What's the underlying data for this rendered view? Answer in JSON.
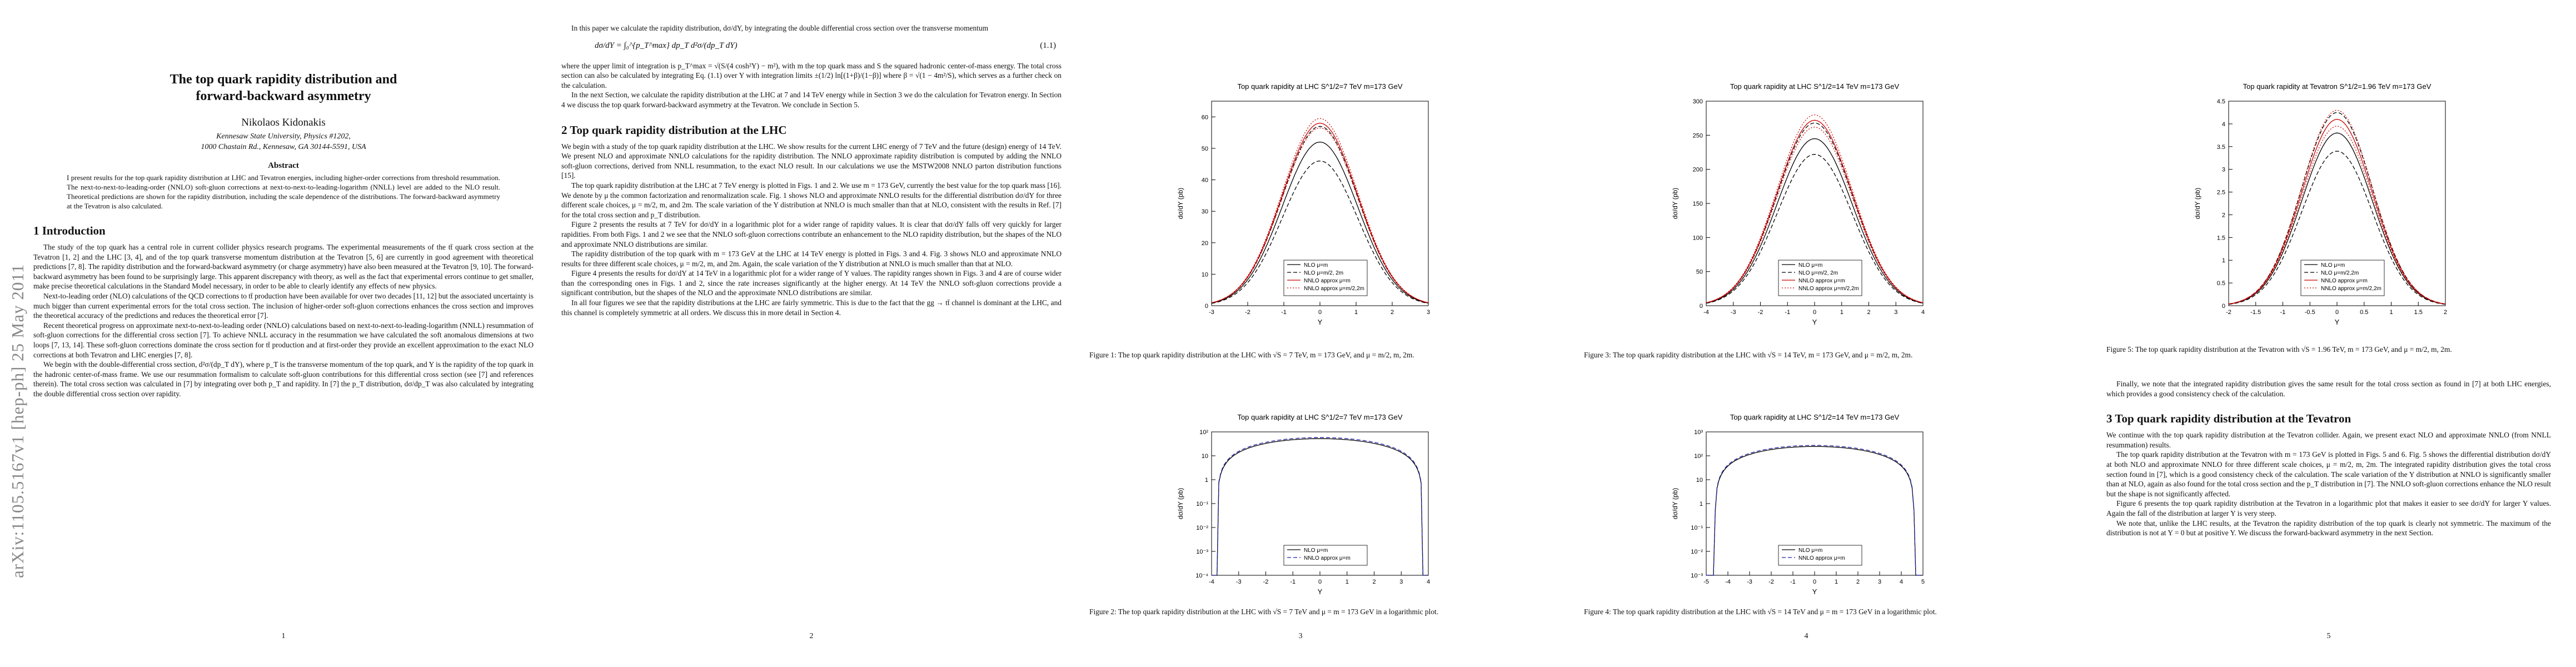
{
  "arxiv_id": "arXiv:1105.5167v1  [hep-ph]  25 May 2011",
  "page1": {
    "title_line1": "The top quark rapidity distribution and",
    "title_line2": "forward-backward asymmetry",
    "author": "Nikolaos Kidonakis",
    "affil_line1": "Kennesaw State University, Physics #1202,",
    "affil_line2": "1000 Chastain Rd., Kennesaw, GA 30144-5591, USA",
    "abstract_heading": "Abstract",
    "abstract": "I present results for the top quark rapidity distribution at LHC and Tevatron energies, including higher-order corrections from threshold resummation. The next-to-next-to-leading-order (NNLO) soft-gluon corrections at next-to-next-to-leading-logarithm (NNLL) level are added to the NLO result. Theoretical predictions are shown for the rapidity distribution, including the scale dependence of the distributions. The forward-backward asymmetry at the Tevatron is also calculated.",
    "section1": "1   Introduction",
    "para1": "The study of the top quark has a central role in current collider physics research programs. The experimental measurements of the tt̄ quark cross section at the Tevatron [1, 2] and the LHC [3, 4], and of the top quark transverse momentum distribution at the Tevatron [5, 6] are currently in good agreement with theoretical predictions [7, 8]. The rapidity distribution and the forward-backward asymmetry (or charge asymmetry) have also been measured at the Tevatron [9, 10]. The forward-backward asymmetry has been found to be surprisingly large. This apparent discrepancy with theory, as well as the fact that experimental errors continue to get smaller, make precise theoretical calculations in the Standard Model necessary, in order to be able to clearly identify any effects of new physics.",
    "para2": "Next-to-leading order (NLO) calculations of the QCD corrections to tt̄ production have been available for over two decades [11, 12] but the associated uncertainty is much bigger than current experimental errors for the total cross section. The inclusion of higher-order soft-gluon corrections enhances the cross section and improves the theoretical accuracy of the predictions and reduces the theoretical error [7].",
    "para3": "Recent theoretical progress on approximate next-to-next-to-leading order (NNLO) calculations based on next-to-next-to-leading-logarithm (NNLL) resummation of soft-gluon corrections for the differential cross section [7]. To achieve NNLL accuracy in the resummation we have calculated the soft anomalous dimensions at two loops [7, 13, 14]. These soft-gluon corrections dominate the cross section for tt̄ production and at first-order they provide an excellent approximation to the exact NLO corrections at both Tevatron and LHC energies [7, 8].",
    "para4": "We begin with the double-differential cross section, d²σ/(dp_T dY), where p_T is the transverse momentum of the top quark, and Y is the rapidity of the top quark in the hadronic center-of-mass frame. We use our resummation formalism to calculate soft-gluon contributions for this differential cross section (see [7] and references therein). The total cross section was calculated in [7] by integrating over both p_T and rapidity. In [7] the p_T distribution, dσ/dp_T was also calculated by integrating the double differential cross section over rapidity.",
    "page_number": "1"
  },
  "page2": {
    "intro": "In this paper we calculate the rapidity distribution, dσ/dY, by integrating the double differential cross section over the transverse momentum",
    "equation_lhs": "dσ/dY =",
    "equation_rhs": "∫₀^{p_T^max} dp_T  d²σ/(dp_T dY)",
    "equation_number": "(1.1)",
    "para_after_eq": "where the upper limit of integration is p_T^max = √(S/(4 cosh²Y) − m²), with m the top quark mass and S the squared hadronic center-of-mass energy. The total cross section can also be calculated by integrating Eq. (1.1) over Y with integration limits ±(1/2) ln[(1+β)/(1−β)] where β = √(1 − 4m²/S), which serves as a further check on the calculation.",
    "para_next": "In the next Section, we calculate the rapidity distribution at the LHC at 7 and 14 TeV energy while in Section 3 we do the calculation for Tevatron energy. In Section 4 we discuss the top quark forward-backward asymmetry at the Tevatron. We conclude in Section 5.",
    "section2": "2   Top quark rapidity distribution at the LHC",
    "s2p1": "We begin with a study of the top quark rapidity distribution at the LHC. We show results for the current LHC energy of 7 TeV and the future (design) energy of 14 TeV. We present NLO and approximate NNLO calculations for the rapidity distribution. The NNLO approximate rapidity distribution is computed by adding the NNLO soft-gluon corrections, derived from NNLL resummation, to the exact NLO result. In our calculations we use the MSTW2008 NNLO parton distribution functions [15].",
    "s2p2": "The top quark rapidity distribution at the LHC at 7 TeV energy is plotted in Figs. 1 and 2. We use m = 173 GeV, currently the best value for the top quark mass [16]. We denote by μ the common factorization and renormalization scale. Fig. 1 shows NLO and approximate NNLO results for the differential distribution dσ/dY for three different scale choices, μ = m/2, m, and 2m. The scale variation of the Y distribution at NNLO is much smaller than that at NLO, consistent with the results in Ref. [7] for the total cross section and p_T distribution.",
    "s2p3": "Figure 2 presents the results at 7 TeV for dσ/dY in a logarithmic plot for a wider range of rapidity values. It is clear that dσ/dY falls off very quickly for larger rapidities. From both Figs. 1 and 2 we see that the NNLO soft-gluon corrections contribute an enhancement to the NLO rapidity distribution, but the shapes of the NLO and approximate NNLO distributions are similar.",
    "s2p4": "The rapidity distribution of the top quark with m = 173 GeV at the LHC at 14 TeV energy is plotted in Figs. 3 and 4. Fig. 3 shows NLO and approximate NNLO results for three different scale choices, μ = m/2, m, and 2m. Again, the scale variation of the Y distribution at NNLO is much smaller than that at NLO.",
    "s2p5": "Figure 4 presents the results for dσ/dY at 14 TeV in a logarithmic plot for a wider range of Y values. The rapidity ranges shown in Figs. 3 and 4 are of course wider than the corresponding ones in Figs. 1 and 2, since the rate increases significantly at the higher energy. At 14 TeV the NNLO soft-gluon corrections provide a significant contribution, but the shapes of the NLO and the approximate NNLO distributions are similar.",
    "s2p6": "In all four figures we see that the rapidity distributions at the LHC are fairly symmetric. This is due to the fact that the gg → tt̄ channel is dominant at the LHC, and this channel is completely symmetric at all orders. We discuss this in more detail in Section 4.",
    "page_number": "2"
  },
  "page3": {
    "fig1_caption": "Figure 1: The top quark rapidity distribution at the LHC with √S = 7 TeV, m = 173 GeV, and μ = m/2, m, 2m.",
    "fig2_caption": "Figure 2: The top quark rapidity distribution at the LHC with √S = 7 TeV and μ = m = 173 GeV in a logarithmic plot.",
    "page_number": "3"
  },
  "page4": {
    "fig3_caption": "Figure 3: The top quark rapidity distribution at the LHC with √S = 14 TeV, m = 173 GeV, and μ = m/2, m, 2m.",
    "fig4_caption": "Figure 4: The top quark rapidity distribution at the LHC with √S = 14 TeV and μ = m = 173 GeV in a logarithmic plot.",
    "page_number": "4"
  },
  "page5": {
    "fig5_caption": "Figure 5: The top quark rapidity distribution at the Tevatron with √S = 1.96 TeV, m = 173 GeV, and μ = m/2, m, 2m.",
    "p1": "Finally, we note that the integrated rapidity distribution gives the same result for the total cross section as found in [7] at both LHC energies, which provides a good consistency check of the calculation.",
    "section3": "3   Top quark rapidity distribution at the Tevatron",
    "s3p1": "We continue with the top quark rapidity distribution at the Tevatron collider. Again, we present exact NLO and approximate NNLO (from NNLL resummation) results.",
    "s3p2": "The top quark rapidity distribution at the Tevatron with m = 173 GeV is plotted in Figs. 5 and 6. Fig. 5 shows the differential distribution dσ/dY at both NLO and approximate NNLO for three different scale choices, μ = m/2, m, 2m. The integrated rapidity distribution gives the total cross section found in [7], which is a good consistency check of the calculation. The scale variation of the Y distribution at NNLO is significantly smaller than at NLO, again as also found for the total cross section and the p_T distribution in [7]. The NNLO soft-gluon corrections enhance the NLO result but the shape is not significantly affected.",
    "s3p3": "Figure 6 presents the top quark rapidity distribution at the Tevatron in a logarithmic plot that makes it easier to see dσ/dY for larger Y values. Again the fall of the distribution at larger Y is very steep.",
    "s3p4": "We note that, unlike the LHC results, at the Tevatron the rapidity distribution of the top quark is clearly not symmetric. The maximum of the distribution is not at Y = 0 but at positive Y. We discuss the forward-backward asymmetry in the next Section.",
    "page_number": "5"
  },
  "chart_data": [
    {
      "type": "line",
      "title": "Top quark rapidity at  LHC   S^1/2=7 TeV   m=173 GeV",
      "xlabel": "Y",
      "ylabel": "dσ/dY (pb)",
      "xlim": [
        -3,
        3
      ],
      "ylim": [
        0,
        65
      ],
      "xticks": [
        -3,
        -2,
        -1,
        0,
        1,
        2,
        3
      ],
      "yticks": [
        0,
        10,
        20,
        30,
        40,
        50,
        60
      ],
      "log": false,
      "legend_position": "bottom-center",
      "series": [
        {
          "name": "NLO μ=m",
          "peak": 52,
          "style": "solid",
          "color": "#000000"
        },
        {
          "name": "NLO μ=m/2, 2m",
          "peak": 57,
          "style": "dashed",
          "color": "#000000"
        },
        {
          "name": "NLO μ=m/2, 2m",
          "peak": 46,
          "style": "dashed",
          "color": "#000000"
        },
        {
          "name": "NNLO approx μ=m",
          "peak": 58,
          "style": "solid",
          "color": "#cc0000"
        },
        {
          "name": "NNLO approx μ=m/2,2m",
          "peak": 59.5,
          "style": "dotted",
          "color": "#cc0000"
        },
        {
          "name": "NNLO approx μ=m/2,2m",
          "peak": 56.5,
          "style": "dotted",
          "color": "#cc0000"
        }
      ],
      "width": 2.4
    },
    {
      "type": "line",
      "title": "Top quark rapidity at  LHC   S^1/2=7 TeV   m=173 GeV",
      "xlabel": "Y",
      "ylabel": "dσ/dY (pb)",
      "xlim": [
        -4,
        4
      ],
      "ylim_exp": [
        -4,
        2
      ],
      "xticks": [
        -4,
        -3,
        -2,
        -1,
        0,
        1,
        2,
        3,
        4
      ],
      "yticks": [
        "10⁻⁴",
        "10⁻³",
        "10⁻²",
        "10⁻¹",
        "1",
        "10",
        "10²"
      ],
      "log": true,
      "legend_position": "bottom-center",
      "series": [
        {
          "name": "NLO μ=m",
          "peak": 52,
          "style": "solid",
          "color": "#000000"
        },
        {
          "name": "NNLO approx μ=m",
          "peak": 58,
          "style": "dashed",
          "color": "#2222aa"
        }
      ],
      "ymax_y": 3.8
    },
    {
      "type": "line",
      "title": "Top quark rapidity at  LHC   S^1/2=14 TeV   m=173 GeV",
      "xlabel": "Y",
      "ylabel": "dσ/dY (pb)",
      "xlim": [
        -4,
        4
      ],
      "ylim": [
        0,
        300
      ],
      "xticks": [
        -4,
        -3,
        -2,
        -1,
        0,
        1,
        2,
        3,
        4
      ],
      "yticks": [
        0,
        50,
        100,
        150,
        200,
        250,
        300
      ],
      "log": false,
      "legend_position": "bottom-center",
      "series": [
        {
          "name": "NLO μ=m",
          "peak": 245,
          "style": "solid",
          "color": "#000000"
        },
        {
          "name": "NLO μ=m/2, 2m",
          "peak": 268,
          "style": "dashed",
          "color": "#000000"
        },
        {
          "name": "NLO μ=m/2, 2m",
          "peak": 222,
          "style": "dashed",
          "color": "#000000"
        },
        {
          "name": "NNLO approx μ=m",
          "peak": 272,
          "style": "solid",
          "color": "#cc0000"
        },
        {
          "name": "NNLO approx μ=m/2,2m",
          "peak": 280,
          "style": "dotted",
          "color": "#cc0000"
        },
        {
          "name": "NNLO approx μ=m/2,2m",
          "peak": 262,
          "style": "dotted",
          "color": "#cc0000"
        }
      ],
      "width": 3.2
    },
    {
      "type": "line",
      "title": "Top quark rapidity at  LHC   S^1/2=14 TeV   m=173 GeV",
      "xlabel": "Y",
      "ylabel": "dσ/dY (pb)",
      "xlim": [
        -5,
        5
      ],
      "ylim_exp": [
        -3,
        3
      ],
      "xticks": [
        -5,
        -4,
        -3,
        -2,
        -1,
        0,
        1,
        2,
        3,
        4,
        5
      ],
      "yticks": [
        "10⁻³",
        "10⁻²",
        "10⁻¹",
        "1",
        "10",
        "10²",
        "10³"
      ],
      "log": true,
      "legend_position": "bottom-center",
      "series": [
        {
          "name": "NLO μ=m",
          "peak": 245,
          "style": "solid",
          "color": "#000000"
        },
        {
          "name": "NNLO approx μ=m",
          "peak": 272,
          "style": "dashed",
          "color": "#2222aa"
        }
      ],
      "ymax_y": 4.6
    },
    {
      "type": "line",
      "title": "Top quark rapidity at  Tevatron   S^1/2=1.96 TeV   m=173 GeV",
      "xlabel": "Y",
      "ylabel": "dσ/dY (pb)",
      "xlim": [
        -2,
        2
      ],
      "ylim": [
        0,
        4.5
      ],
      "xticks": [
        -2,
        -1.5,
        -1,
        -0.5,
        0,
        0.5,
        1,
        1.5,
        2
      ],
      "yticks": [
        0,
        0.5,
        1,
        1.5,
        2,
        2.5,
        3,
        3.5,
        4,
        4.5
      ],
      "log": false,
      "legend_position": "bottom-center",
      "series": [
        {
          "name": "NLO μ=m",
          "peak": 3.8,
          "style": "solid",
          "color": "#000000"
        },
        {
          "name": "NLO μ=m/2,2m",
          "peak": 4.25,
          "style": "dashed",
          "color": "#000000"
        },
        {
          "name": "NLO μ=m/2,2m",
          "peak": 3.4,
          "style": "dashed",
          "color": "#000000"
        },
        {
          "name": "NNLO approx μ=m",
          "peak": 4.1,
          "style": "solid",
          "color": "#cc0000"
        },
        {
          "name": "NNLO approx μ=m/2,2m",
          "peak": 4.3,
          "style": "dotted",
          "color": "#cc0000"
        },
        {
          "name": "NNLO approx μ=m/2,2m",
          "peak": 3.95,
          "style": "dotted",
          "color": "#cc0000"
        }
      ],
      "width": 1.5
    }
  ]
}
